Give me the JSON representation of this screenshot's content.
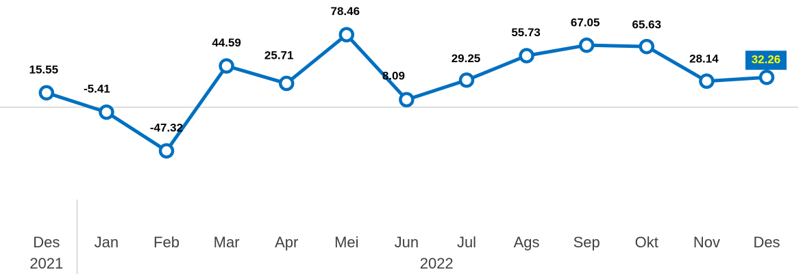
{
  "chart_data": {
    "type": "line",
    "categories": [
      "Des",
      "Jan",
      "Feb",
      "Mar",
      "Apr",
      "Mei",
      "Jun",
      "Jul",
      "Ags",
      "Sep",
      "Okt",
      "Nov",
      "Des"
    ],
    "groups": [
      {
        "label": "2021",
        "span": 1
      },
      {
        "label": "2022",
        "span": 12
      }
    ],
    "series": [
      {
        "name": null,
        "color": "#0070c0",
        "values": [
          15.55,
          -5.41,
          -47.32,
          44.59,
          25.71,
          78.46,
          8.09,
          29.25,
          55.73,
          67.05,
          65.63,
          28.14,
          32.26
        ]
      }
    ],
    "ylim": [
      -100,
      116
    ]
  }
}
